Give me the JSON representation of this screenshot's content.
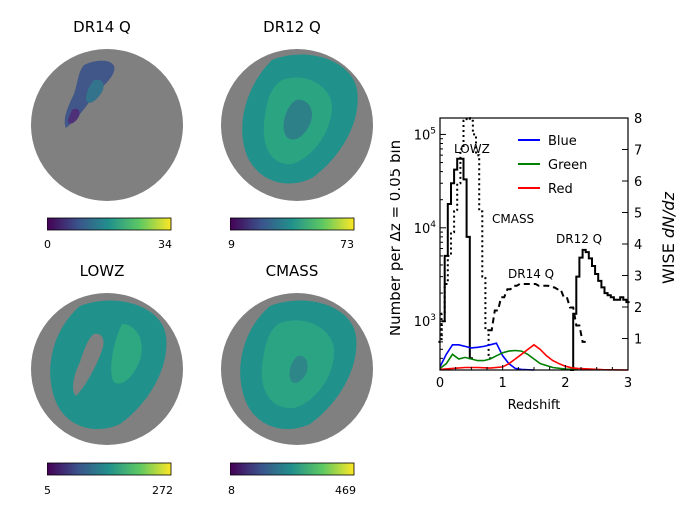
{
  "maps": [
    {
      "title": "DR14 Q",
      "cmin": "0",
      "cmax": "34"
    },
    {
      "title": "DR12 Q",
      "cmin": "9",
      "cmax": "73"
    },
    {
      "title": "LOWZ",
      "cmin": "5",
      "cmax": "272"
    },
    {
      "title": "CMASS",
      "cmin": "8",
      "cmax": "469"
    }
  ],
  "colors": {
    "blue": "#0000ff",
    "green": "#008000",
    "red": "#ff0000",
    "disk": "#808080"
  },
  "chart_data": {
    "type": "line",
    "xlabel": "Redshift",
    "ylabel_left": "Number per Δz = 0.05 bin",
    "ylabel_right_prefix": "WISE ",
    "ylabel_right_math": "dN/dz",
    "xlim": [
      0,
      3
    ],
    "ylim_left_log": [
      300,
      150000
    ],
    "ylim_right": [
      0,
      8
    ],
    "x_ticks": [
      "0",
      "1",
      "2",
      "3"
    ],
    "y_left_ticks": [
      {
        "value": 1000,
        "label": "10",
        "exp": "3"
      },
      {
        "value": 10000,
        "label": "10",
        "exp": "4"
      },
      {
        "value": 100000,
        "label": "10",
        "exp": "5"
      }
    ],
    "y_right_ticks": [
      "1",
      "2",
      "3",
      "4",
      "5",
      "6",
      "7",
      "8"
    ],
    "legend": [
      "Blue",
      "Green",
      "Red"
    ],
    "annotations": [
      "LOWZ",
      "CMASS",
      "DR14 Q",
      "DR12 Q"
    ],
    "series": [
      {
        "name": "LOWZ",
        "axis": "left",
        "style": "solid-step",
        "x": [
          0.05,
          0.1,
          0.15,
          0.2,
          0.25,
          0.3,
          0.35,
          0.4,
          0.45,
          0.5
        ],
        "y": [
          1000,
          5000,
          18000,
          30000,
          42000,
          55000,
          55000,
          33000,
          8000,
          400
        ]
      },
      {
        "name": "CMASS",
        "axis": "left",
        "style": "dotted-step",
        "x": [
          0.0,
          0.05,
          0.1,
          0.15,
          0.2,
          0.25,
          0.3,
          0.35,
          0.4,
          0.45,
          0.5,
          0.55,
          0.6,
          0.65,
          0.7,
          0.75,
          0.8
        ],
        "y": [
          600,
          1200,
          2500,
          5000,
          9000,
          15000,
          30000,
          70000,
          140000,
          160000,
          140000,
          100000,
          60000,
          15000,
          3000,
          800,
          400
        ]
      },
      {
        "name": "DR14 Q",
        "axis": "left",
        "style": "dashed-step",
        "x": [
          0.8,
          0.9,
          1.0,
          1.1,
          1.2,
          1.3,
          1.4,
          1.5,
          1.6,
          1.7,
          1.8,
          1.9,
          2.0,
          2.1,
          2.2,
          2.3
        ],
        "y": [
          800,
          1300,
          1800,
          2200,
          2400,
          2500,
          2500,
          2500,
          2400,
          2400,
          2300,
          2200,
          1800,
          1400,
          900,
          600
        ]
      },
      {
        "name": "DR12 Q",
        "axis": "left",
        "style": "solid-step",
        "x": [
          2.1,
          2.15,
          2.2,
          2.25,
          2.3,
          2.35,
          2.4,
          2.45,
          2.5,
          2.55,
          2.6,
          2.65,
          2.7,
          2.75,
          2.8,
          2.85,
          2.9,
          2.95,
          3.0
        ],
        "y": [
          300,
          1200,
          3000,
          4800,
          5800,
          5500,
          4700,
          3900,
          3200,
          2700,
          2300,
          2000,
          1900,
          1800,
          1700,
          1700,
          1800,
          1700,
          1600
        ]
      },
      {
        "name": "Blue",
        "axis": "right",
        "style": "line",
        "x": [
          0.0,
          0.1,
          0.2,
          0.3,
          0.4,
          0.5,
          0.6,
          0.7,
          0.8,
          0.9,
          1.0,
          1.1,
          1.2,
          1.3,
          1.5
        ],
        "y": [
          0.1,
          0.5,
          0.8,
          0.8,
          0.75,
          0.7,
          0.72,
          0.75,
          0.8,
          0.85,
          0.45,
          0.2,
          0.05,
          0.02,
          0.0
        ]
      },
      {
        "name": "Green",
        "axis": "right",
        "style": "line",
        "x": [
          0.0,
          0.1,
          0.2,
          0.3,
          0.4,
          0.5,
          0.6,
          0.7,
          0.8,
          0.9,
          1.0,
          1.1,
          1.2,
          1.3,
          1.4,
          1.5,
          1.6,
          1.8,
          2.0,
          2.2
        ],
        "y": [
          0.05,
          0.2,
          0.5,
          0.35,
          0.4,
          0.35,
          0.3,
          0.3,
          0.35,
          0.45,
          0.55,
          0.6,
          0.62,
          0.6,
          0.5,
          0.35,
          0.2,
          0.08,
          0.03,
          0.01
        ]
      },
      {
        "name": "Red",
        "axis": "right",
        "style": "line",
        "x": [
          0.0,
          0.2,
          0.4,
          0.6,
          0.8,
          1.0,
          1.1,
          1.2,
          1.3,
          1.4,
          1.5,
          1.6,
          1.7,
          1.8,
          1.9,
          2.0,
          2.1,
          2.2,
          2.4,
          2.6,
          3.0
        ],
        "y": [
          0.02,
          0.05,
          0.08,
          0.08,
          0.06,
          0.1,
          0.2,
          0.35,
          0.5,
          0.65,
          0.8,
          0.65,
          0.45,
          0.3,
          0.2,
          0.12,
          0.07,
          0.05,
          0.03,
          0.01,
          0.0
        ]
      }
    ]
  }
}
